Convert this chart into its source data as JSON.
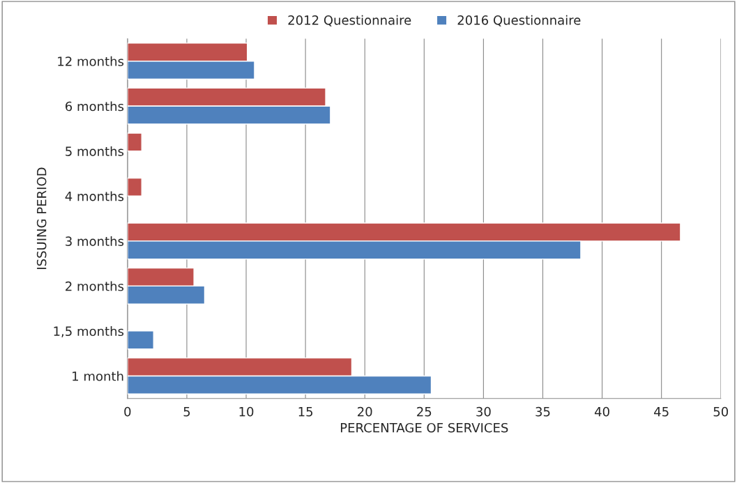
{
  "chart_data": {
    "type": "bar",
    "orientation": "horizontal",
    "categories": [
      "12 months",
      "6 months",
      "5 months",
      "4 months",
      "3 months",
      "2 months",
      "1,5 months",
      "1 month"
    ],
    "series": [
      {
        "name": "2012 Questionnaire",
        "color": "#c0504d",
        "values": [
          10.1,
          16.7,
          1.2,
          1.2,
          46.6,
          5.6,
          null,
          18.9
        ]
      },
      {
        "name": "2016 Questionnaire",
        "color": "#4f81bd",
        "values": [
          10.7,
          17.1,
          null,
          null,
          38.2,
          6.5,
          2.2,
          25.6
        ]
      }
    ],
    "xlabel": "PERCENTAGE OF SERVICES",
    "ylabel": "ISSUING PERIOD",
    "xlim": [
      0,
      50
    ],
    "xticks": [
      0,
      5,
      10,
      15,
      20,
      25,
      30,
      35,
      40,
      45,
      50
    ],
    "grid": "x",
    "legend": "top"
  }
}
